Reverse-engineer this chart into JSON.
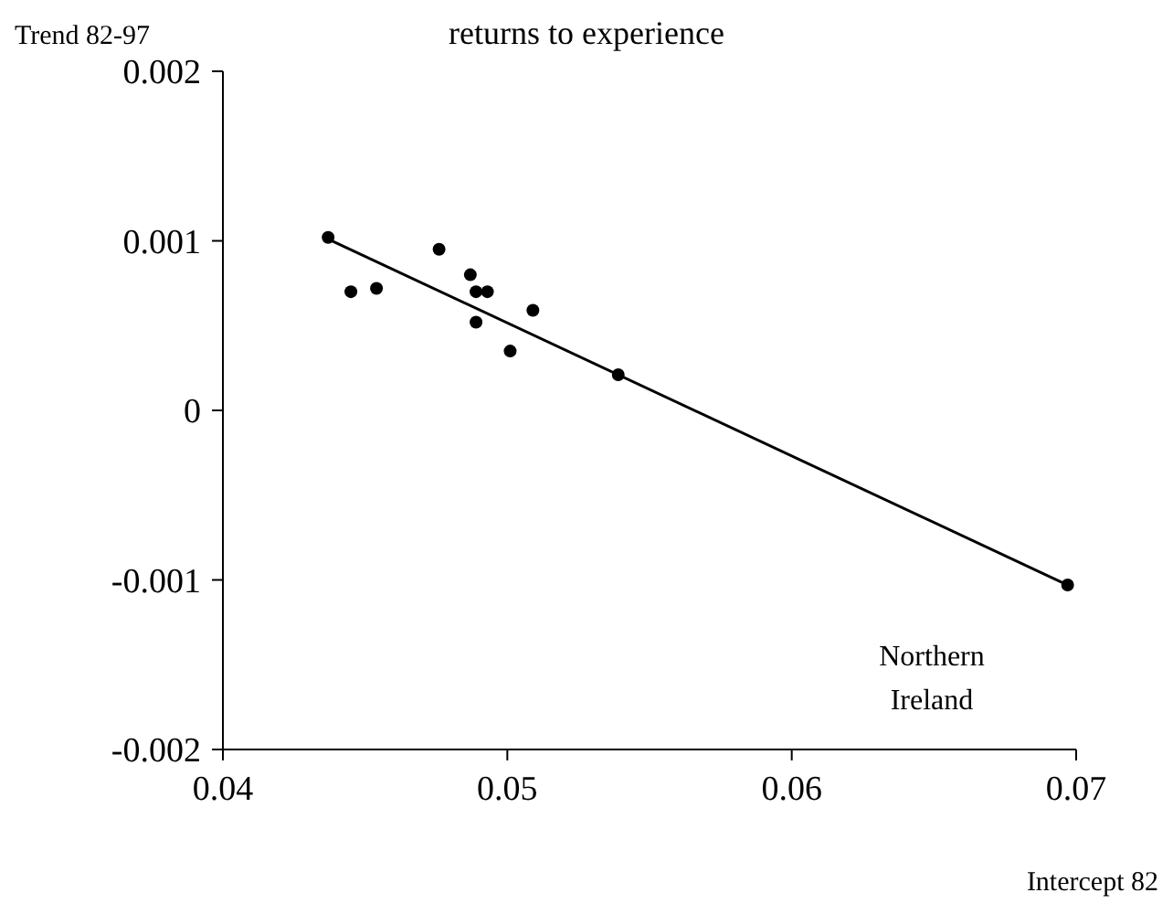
{
  "chart_data": {
    "type": "scatter",
    "title": "returns to experience",
    "xlabel": "Intercept 82",
    "ylabel": "Trend 82-97",
    "xlim": [
      0.04,
      0.07
    ],
    "xticks": [
      0.04,
      0.05,
      0.06,
      0.07
    ],
    "ylim": [
      -0.002,
      0.002
    ],
    "yticks": [
      -0.002,
      -0.001,
      0,
      0.001,
      0.002
    ],
    "series": [
      {
        "type": "scatter",
        "color": "#000000",
        "marker": "circle",
        "x": [
          0.0437,
          0.0445,
          0.0454,
          0.0476,
          0.0487,
          0.0489,
          0.0493,
          0.0489,
          0.0501,
          0.0509,
          0.0539,
          0.0697
        ],
        "values": [
          0.00102,
          0.0007,
          0.00072,
          0.00095,
          0.0008,
          0.0007,
          0.0007,
          0.00052,
          0.00035,
          0.00059,
          0.00021,
          -0.00103
        ]
      },
      {
        "type": "line",
        "color": "#000000",
        "x": [
          0.0437,
          0.0697
        ],
        "values": [
          0.00101,
          -0.00103
        ]
      }
    ],
    "annotations": [
      "Northern Ireland"
    ]
  }
}
